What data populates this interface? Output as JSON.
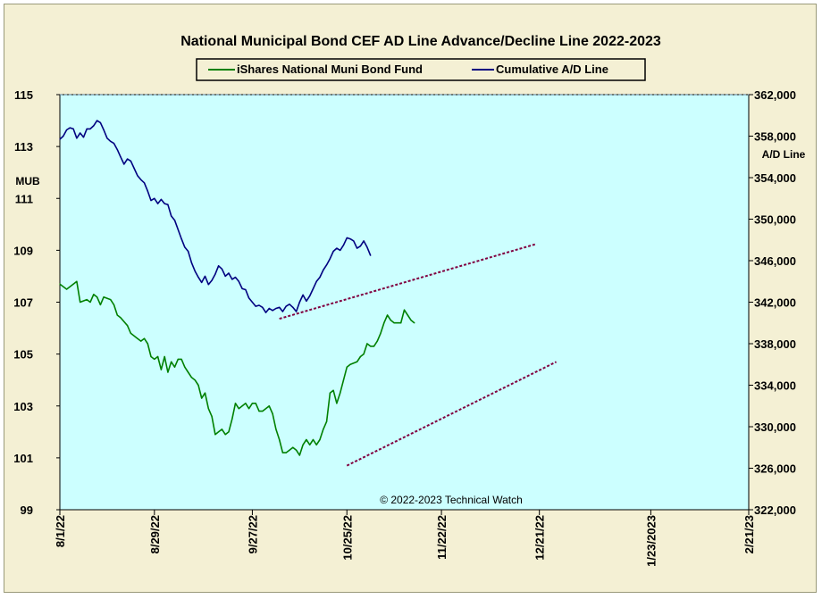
{
  "chart_data": {
    "type": "line",
    "title": "National Municipal Bond CEF AD Line Advance/Decline Line 2022-2023",
    "copyright": "© 2022-2023 Technical Watch",
    "ylabel_left": "MUB",
    "ylabel_right": "A/D Line",
    "legend_position": "top-center",
    "grid": false,
    "background_color": "#ccffff",
    "frame_color": "#f4f0d4",
    "x_ticks": [
      "8/1/22",
      "8/29/22",
      "9/27/22",
      "10/25/22",
      "11/22/22",
      "12/21/22",
      "1/23/2023",
      "2/21/23"
    ],
    "x_tick_days": [
      0,
      28,
      57,
      85,
      113,
      142,
      175,
      204
    ],
    "x_range_days": [
      0,
      204
    ],
    "left_axis": {
      "ylim": [
        99,
        115
      ],
      "ticks": [
        "99",
        "101",
        "103",
        "105",
        "107",
        "109",
        "111",
        "113",
        "115"
      ]
    },
    "right_axis": {
      "ylim": [
        322000,
        362000
      ],
      "ticks": [
        "322,000",
        "326,000",
        "330,000",
        "334,000",
        "338,000",
        "342,000",
        "346,000",
        "350,000",
        "354,000",
        "358,000",
        "362,000"
      ]
    },
    "series": [
      {
        "name": "iShares National Muni Bond Fund",
        "axis": "left",
        "color": "#008000",
        "points": [
          [
            0,
            107.7
          ],
          [
            2,
            107.5
          ],
          [
            4,
            107.7
          ],
          [
            5,
            107.8
          ],
          [
            6,
            107.0
          ],
          [
            8,
            107.1
          ],
          [
            9,
            107.0
          ],
          [
            10,
            107.3
          ],
          [
            11,
            107.2
          ],
          [
            12,
            106.9
          ],
          [
            13,
            107.2
          ],
          [
            15,
            107.1
          ],
          [
            16,
            106.9
          ],
          [
            17,
            106.5
          ],
          [
            18,
            106.4
          ],
          [
            20,
            106.1
          ],
          [
            21,
            105.8
          ],
          [
            23,
            105.6
          ],
          [
            24,
            105.5
          ],
          [
            25,
            105.6
          ],
          [
            26,
            105.4
          ],
          [
            27,
            104.9
          ],
          [
            28,
            104.8
          ],
          [
            29,
            104.9
          ],
          [
            30,
            104.4
          ],
          [
            31,
            104.9
          ],
          [
            32,
            104.3
          ],
          [
            33,
            104.7
          ],
          [
            34,
            104.5
          ],
          [
            35,
            104.8
          ],
          [
            36,
            104.8
          ],
          [
            37,
            104.5
          ],
          [
            38,
            104.3
          ],
          [
            39,
            104.1
          ],
          [
            40,
            104.0
          ],
          [
            41,
            103.8
          ],
          [
            42,
            103.3
          ],
          [
            43,
            103.5
          ],
          [
            44,
            102.9
          ],
          [
            45,
            102.6
          ],
          [
            46,
            101.9
          ],
          [
            47,
            102.0
          ],
          [
            48,
            102.1
          ],
          [
            49,
            101.9
          ],
          [
            50,
            102.0
          ],
          [
            51,
            102.5
          ],
          [
            52,
            103.1
          ],
          [
            53,
            102.9
          ],
          [
            54,
            103.0
          ],
          [
            55,
            103.1
          ],
          [
            56,
            102.9
          ],
          [
            57,
            103.1
          ],
          [
            58,
            103.1
          ],
          [
            59,
            102.8
          ],
          [
            60,
            102.8
          ],
          [
            61,
            102.9
          ],
          [
            62,
            103.0
          ],
          [
            63,
            102.7
          ],
          [
            64,
            102.1
          ],
          [
            65,
            101.7
          ],
          [
            66,
            101.2
          ],
          [
            67,
            101.2
          ],
          [
            68,
            101.3
          ],
          [
            69,
            101.4
          ],
          [
            70,
            101.3
          ],
          [
            71,
            101.1
          ],
          [
            72,
            101.5
          ],
          [
            73,
            101.7
          ],
          [
            74,
            101.5
          ],
          [
            75,
            101.7
          ],
          [
            76,
            101.5
          ],
          [
            77,
            101.7
          ],
          [
            78,
            102.1
          ],
          [
            79,
            102.4
          ],
          [
            80,
            103.5
          ],
          [
            81,
            103.6
          ],
          [
            82,
            103.1
          ],
          [
            83,
            103.5
          ],
          [
            84,
            104.0
          ],
          [
            85,
            104.5
          ],
          [
            86,
            104.6
          ],
          [
            88,
            104.7
          ],
          [
            89,
            104.9
          ],
          [
            90,
            105.0
          ],
          [
            91,
            105.4
          ],
          [
            92,
            105.3
          ],
          [
            93,
            105.3
          ],
          [
            94,
            105.5
          ],
          [
            95,
            105.8
          ],
          [
            96,
            106.2
          ],
          [
            97,
            106.5
          ],
          [
            98,
            106.3
          ],
          [
            99,
            106.2
          ],
          [
            100,
            106.2
          ],
          [
            101,
            106.2
          ],
          [
            102,
            106.7
          ],
          [
            103,
            106.5
          ],
          [
            104,
            106.3
          ],
          [
            105,
            106.2
          ]
        ]
      },
      {
        "name": "Cumulative A/D Line",
        "axis": "right",
        "color": "#000080",
        "points": [
          [
            0,
            357700
          ],
          [
            1,
            358000
          ],
          [
            2,
            358600
          ],
          [
            3,
            358800
          ],
          [
            4,
            358700
          ],
          [
            5,
            357800
          ],
          [
            6,
            358300
          ],
          [
            7,
            357900
          ],
          [
            8,
            358700
          ],
          [
            9,
            358700
          ],
          [
            10,
            359000
          ],
          [
            11,
            359500
          ],
          [
            12,
            359300
          ],
          [
            13,
            358600
          ],
          [
            14,
            357800
          ],
          [
            15,
            357500
          ],
          [
            16,
            357300
          ],
          [
            17,
            356700
          ],
          [
            18,
            356000
          ],
          [
            19,
            355300
          ],
          [
            20,
            355800
          ],
          [
            21,
            355600
          ],
          [
            22,
            354900
          ],
          [
            23,
            354200
          ],
          [
            24,
            353800
          ],
          [
            25,
            353500
          ],
          [
            26,
            352700
          ],
          [
            27,
            351800
          ],
          [
            28,
            352000
          ],
          [
            29,
            351500
          ],
          [
            30,
            351900
          ],
          [
            31,
            351500
          ],
          [
            32,
            351400
          ],
          [
            33,
            350300
          ],
          [
            34,
            349900
          ],
          [
            35,
            349000
          ],
          [
            36,
            348100
          ],
          [
            37,
            347300
          ],
          [
            38,
            346900
          ],
          [
            39,
            345800
          ],
          [
            40,
            345000
          ],
          [
            41,
            344400
          ],
          [
            42,
            343900
          ],
          [
            43,
            344500
          ],
          [
            44,
            343700
          ],
          [
            45,
            344100
          ],
          [
            46,
            344700
          ],
          [
            47,
            345500
          ],
          [
            48,
            345200
          ],
          [
            49,
            344500
          ],
          [
            50,
            344800
          ],
          [
            51,
            344200
          ],
          [
            52,
            344400
          ],
          [
            53,
            344000
          ],
          [
            54,
            343300
          ],
          [
            55,
            343200
          ],
          [
            56,
            342400
          ],
          [
            57,
            342000
          ],
          [
            58,
            341600
          ],
          [
            59,
            341700
          ],
          [
            60,
            341500
          ],
          [
            61,
            341000
          ],
          [
            62,
            341400
          ],
          [
            63,
            341200
          ],
          [
            64,
            341400
          ],
          [
            65,
            341500
          ],
          [
            66,
            341100
          ],
          [
            67,
            341600
          ],
          [
            68,
            341800
          ],
          [
            69,
            341500
          ],
          [
            70,
            341100
          ],
          [
            71,
            342000
          ],
          [
            72,
            342700
          ],
          [
            73,
            342100
          ],
          [
            74,
            342600
          ],
          [
            75,
            343300
          ],
          [
            76,
            344000
          ],
          [
            77,
            344400
          ],
          [
            78,
            345100
          ],
          [
            79,
            345600
          ],
          [
            80,
            346200
          ],
          [
            81,
            346900
          ],
          [
            82,
            347200
          ],
          [
            83,
            347000
          ],
          [
            84,
            347500
          ],
          [
            85,
            348200
          ],
          [
            86,
            348100
          ],
          [
            87,
            347900
          ],
          [
            88,
            347200
          ],
          [
            89,
            347400
          ],
          [
            90,
            347900
          ],
          [
            91,
            347300
          ],
          [
            92,
            346500
          ]
        ]
      }
    ],
    "trendlines": [
      {
        "axis": "left",
        "color": "#800040",
        "points": [
          [
            85,
            100.7
          ],
          [
            147,
            104.7
          ]
        ]
      },
      {
        "axis": "right",
        "color": "#800040",
        "points": [
          [
            65,
            340400
          ],
          [
            141,
            347600
          ]
        ]
      }
    ]
  }
}
